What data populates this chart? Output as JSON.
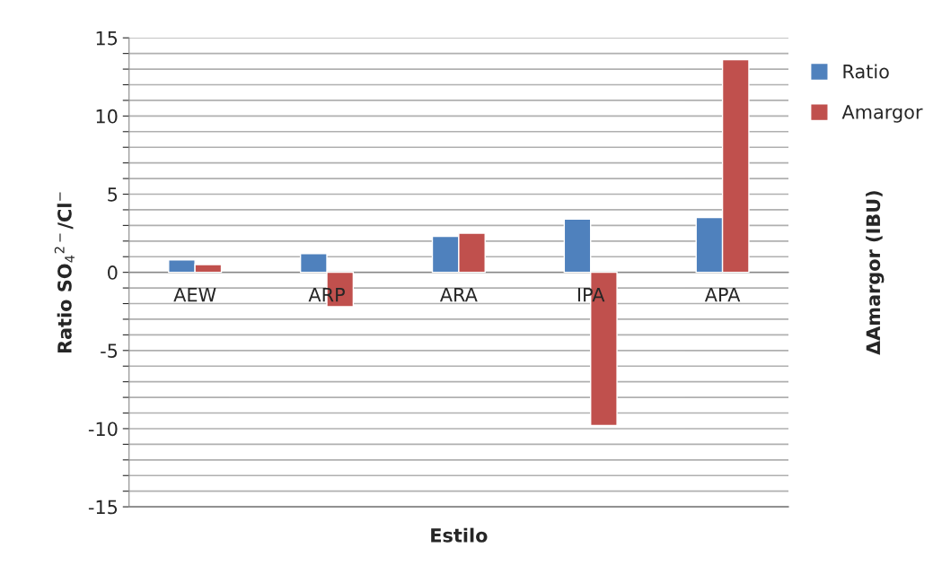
{
  "chart_data": {
    "type": "bar",
    "xlabel": "Estilo",
    "ylabel": "Ratio SO$_{4}$$^{2−}$/Cl$^{−}$",
    "y2label": "ΔAmargor (IBU)",
    "categories": [
      "AEW",
      "ARP",
      "ARA",
      "IPA",
      "APA"
    ],
    "series": [
      {
        "name": "Ratio",
        "color": "#4f81bd",
        "values": [
          0.8,
          1.2,
          2.3,
          3.4,
          3.5
        ]
      },
      {
        "name": "Amargor",
        "color": "#c0504d",
        "values": [
          0.5,
          -2.2,
          2.5,
          -9.8,
          13.6
        ]
      }
    ],
    "ylim": [
      -15,
      15
    ],
    "yticks": [
      -15,
      {
        "value": -14,
        "label": null
      },
      {
        "value": -13,
        "label": null
      },
      {
        "value": -12,
        "label": null
      },
      {
        "value": -11,
        "label": null
      },
      -10,
      {
        "value": -9,
        "label": null
      },
      {
        "value": -8,
        "label": null
      },
      {
        "value": -7,
        "label": null
      },
      {
        "value": -6,
        "label": null
      },
      -5,
      {
        "value": -4,
        "label": null
      },
      {
        "value": -3,
        "label": null
      },
      {
        "value": -2,
        "label": null
      },
      {
        "value": -1,
        "label": null
      },
      0,
      {
        "value": 1,
        "label": null
      },
      {
        "value": 2,
        "label": null
      },
      {
        "value": 3,
        "label": null
      },
      {
        "value": 4,
        "label": null
      },
      5,
      {
        "value": 6,
        "label": null
      },
      {
        "value": 7,
        "label": null
      },
      {
        "value": 8,
        "label": null
      },
      {
        "value": 9,
        "label": null
      },
      10,
      {
        "value": 11,
        "label": null
      },
      {
        "value": 12,
        "label": null
      },
      {
        "value": 13,
        "label": null
      },
      {
        "value": 14,
        "label": null
      },
      15
    ],
    "grid": "y",
    "legend": "right"
  }
}
